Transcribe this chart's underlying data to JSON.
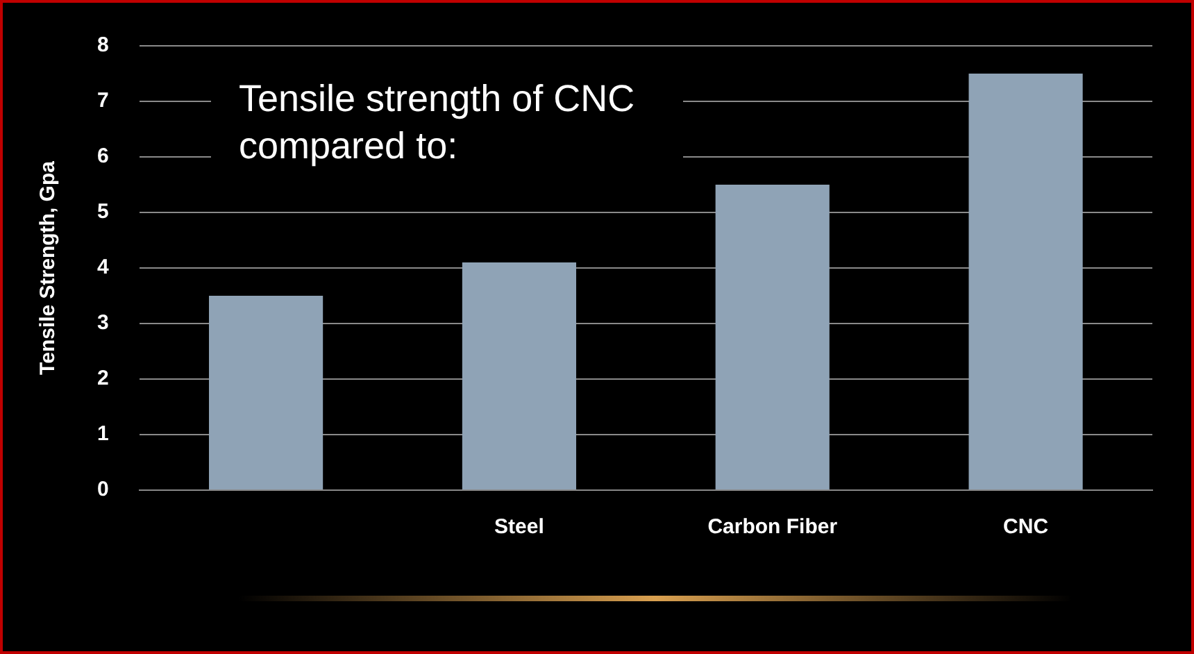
{
  "chart_data": {
    "type": "bar",
    "ylabel": "Tensile Strength, Gpa",
    "categories": [
      null,
      "Steel",
      "Carbon Fiber",
      "CNC"
    ],
    "values": [
      3.5,
      4.1,
      5.5,
      7.5
    ],
    "color": "#8fa3b6",
    "ylim": [
      0,
      8
    ],
    "yticks": [
      0,
      1,
      2,
      3,
      4,
      5,
      6,
      7,
      8
    ],
    "grid": "y",
    "annotations": [
      "Tensile strength of CNC compared to:"
    ]
  }
}
